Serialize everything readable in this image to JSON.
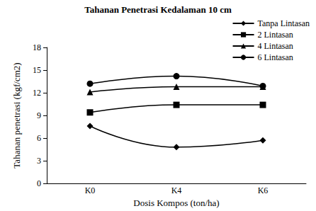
{
  "chart_data": {
    "type": "line",
    "title": "Tahanan Penetrasi Kedalaman 10 cm",
    "x_label": "Dosis Kompos (ton/ha)",
    "y_label": "Tahanan penetrasi (kgf/cm2)",
    "categories": [
      "K0",
      "K4",
      "K6"
    ],
    "series": [
      {
        "name": "Tanpa Lintasan",
        "color": "#000000",
        "marker": "diamond",
        "values": [
          7.6,
          4.8,
          5.7
        ]
      },
      {
        "name": "2 Lintasan",
        "color": "#000000",
        "marker": "square",
        "values": [
          9.4,
          10.4,
          10.4
        ]
      },
      {
        "name": "4 Lintasan",
        "color": "#000000",
        "marker": "triangle",
        "values": [
          12.1,
          12.8,
          12.8
        ]
      },
      {
        "name": "6 Lintasan",
        "color": "#000000",
        "marker": "circle",
        "values": [
          13.2,
          14.2,
          12.9
        ]
      }
    ],
    "ylim": [
      0,
      18
    ],
    "yticks": [
      0,
      3,
      6,
      9,
      12,
      15,
      18
    ],
    "grid": false,
    "legend": "upper right"
  }
}
